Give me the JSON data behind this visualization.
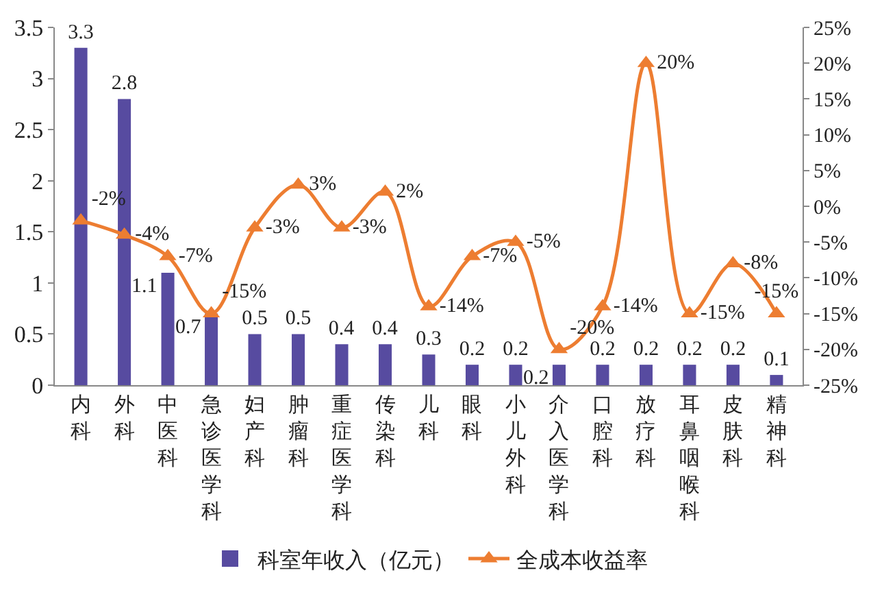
{
  "chart_data": {
    "type": "bar",
    "categories": [
      "内科",
      "外科",
      "中医科",
      "急诊医学科",
      "妇产科",
      "肿瘤科",
      "重症医学科",
      "传染科",
      "儿科",
      "眼科",
      "小儿外科",
      "介入医学科",
      "口腔科",
      "放疗科",
      "耳鼻咽喉科",
      "皮肤科",
      "精神科"
    ],
    "series": [
      {
        "name": "科室年收入（亿元）",
        "color": "#574ba0",
        "values": [
          3.3,
          2.8,
          1.1,
          0.7,
          0.5,
          0.5,
          0.4,
          0.4,
          0.3,
          0.2,
          0.2,
          0.2,
          0.2,
          0.2,
          0.2,
          0.2,
          0.1
        ],
        "value_labels": [
          "3.3",
          "2.8",
          "1.1",
          "0.7",
          "0.5",
          "0.5",
          "0.4",
          "0.4",
          "0.3",
          "0.2",
          "0.2",
          "0.2",
          "0.2",
          "0.2",
          "0.2",
          "0.2",
          "0.1"
        ]
      },
      {
        "name": "全成本收益率",
        "type": "line",
        "axis": "y2",
        "color": "#ed7d31",
        "marker": "triangle",
        "values": [
          -2,
          -4,
          -7,
          -15,
          -3,
          3,
          -3,
          2,
          -14,
          -7,
          -5,
          -20,
          -14,
          20,
          -15,
          -8,
          -15
        ],
        "value_labels": [
          "-2%",
          "-4%",
          "-7%",
          "-15%",
          "-3%",
          "3%",
          "-3%",
          "2%",
          "-14%",
          "-7%",
          "-5%",
          "-20%",
          "-14%",
          "20%",
          "-15%",
          "-8%",
          "-15%"
        ]
      }
    ],
    "ylim": [
      0,
      3.5
    ],
    "yticks": [
      0,
      0.5,
      1,
      1.5,
      2,
      2.5,
      3,
      3.5
    ],
    "y2lim": [
      -25,
      25
    ],
    "y2ticks": [
      {
        "value": -25,
        "label": "-25%"
      },
      {
        "value": -20,
        "label": "-20%"
      },
      {
        "value": -15,
        "label": "-15%"
      },
      {
        "value": -10,
        "label": "-10%"
      },
      {
        "value": -5,
        "label": "-5%"
      },
      {
        "value": 0,
        "label": "0%"
      },
      {
        "value": 5,
        "label": "5%"
      },
      {
        "value": 10,
        "label": "10%"
      },
      {
        "value": 15,
        "label": "15%"
      },
      {
        "value": 20,
        "label": "20%"
      },
      {
        "value": 25,
        "label": "25%"
      }
    ],
    "grid": false,
    "legend": "bottom"
  }
}
